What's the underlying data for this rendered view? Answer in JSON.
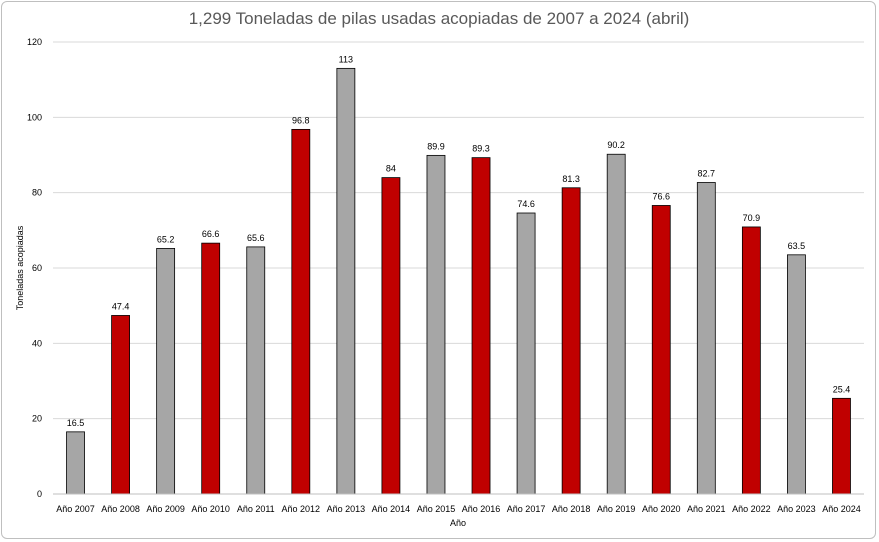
{
  "chart_data": {
    "type": "bar",
    "title": "1,299 Toneladas de pilas usadas acopiadas de 2007 a 2024 (abril)",
    "xlabel": "Año",
    "ylabel": "Toneladas acopiadas",
    "ylim": [
      0,
      120
    ],
    "yticks": [
      0,
      20,
      40,
      60,
      80,
      100,
      120
    ],
    "grid": true,
    "legend": "none",
    "categories": [
      "Año 2007",
      "Año 2008",
      "Año 2009",
      "Año 2010",
      "Año 2011",
      "Año 2012",
      "Año 2013",
      "Año 2014",
      "Año 2015",
      "Año 2016",
      "Año 2017",
      "Año 2018",
      "Año 2019",
      "Año 2020",
      "Año 2021",
      "Año 2022",
      "Año 2023",
      "Año 2024"
    ],
    "values": [
      16.5,
      47.4,
      65.2,
      66.6,
      65.6,
      96.8,
      113,
      84,
      89.9,
      89.3,
      74.6,
      81.3,
      90.2,
      76.6,
      82.7,
      70.9,
      63.5,
      25.4
    ],
    "data_labels": [
      "16.5",
      "47.4",
      "65.2",
      "66.6",
      "65.6",
      "96.8",
      "113",
      "84",
      "89.9",
      "89.3",
      "74.6",
      "81.3",
      "90.2",
      "76.6",
      "82.7",
      "70.9",
      "63.5",
      "25.4"
    ],
    "colors": [
      "#a6a6a6",
      "#c00000",
      "#a6a6a6",
      "#c00000",
      "#a6a6a6",
      "#c00000",
      "#a6a6a6",
      "#c00000",
      "#a6a6a6",
      "#c00000",
      "#a6a6a6",
      "#c00000",
      "#a6a6a6",
      "#c00000",
      "#a6a6a6",
      "#c00000",
      "#a6a6a6",
      "#c00000"
    ]
  }
}
